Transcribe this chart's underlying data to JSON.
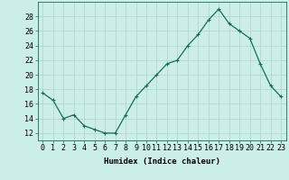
{
  "x": [
    0,
    1,
    2,
    3,
    4,
    5,
    6,
    7,
    8,
    9,
    10,
    11,
    12,
    13,
    14,
    15,
    16,
    17,
    18,
    19,
    20,
    21,
    22,
    23
  ],
  "y": [
    17.5,
    16.5,
    14,
    14.5,
    13,
    12.5,
    12,
    12,
    14.5,
    17,
    18.5,
    20,
    21.5,
    22,
    24,
    25.5,
    27.5,
    29,
    27,
    26,
    25,
    21.5,
    18.5,
    17
  ],
  "line_color": "#1a6b5a",
  "marker": "+",
  "marker_size": 3,
  "linewidth": 0.9,
  "bg_color": "#cceee8",
  "grid_color": "#aad4cc",
  "xlabel": "Humidex (Indice chaleur)",
  "ylabel": "",
  "xlim": [
    -0.5,
    23.5
  ],
  "ylim": [
    11,
    30
  ],
  "yticks": [
    12,
    14,
    16,
    18,
    20,
    22,
    24,
    26,
    28
  ],
  "xticks": [
    0,
    1,
    2,
    3,
    4,
    5,
    6,
    7,
    8,
    9,
    10,
    11,
    12,
    13,
    14,
    15,
    16,
    17,
    18,
    19,
    20,
    21,
    22,
    23
  ],
  "xlabel_fontsize": 6.5,
  "tick_fontsize": 6
}
